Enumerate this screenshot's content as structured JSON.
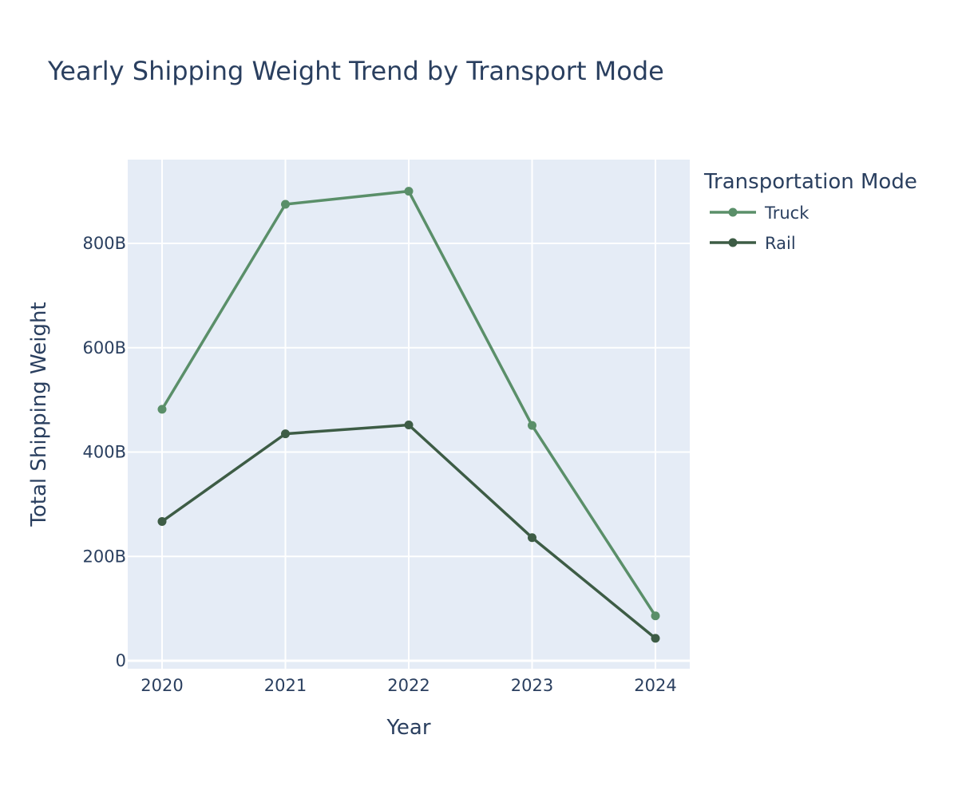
{
  "chart_data": {
    "type": "line",
    "title": "Yearly Shipping Weight Trend by Transport Mode",
    "xlabel": "Year",
    "ylabel": "Total Shipping Weight",
    "categories": [
      "2020",
      "2021",
      "2022",
      "2023",
      "2024"
    ],
    "yticks": [
      0,
      200,
      400,
      600,
      800
    ],
    "ytick_labels": [
      "0",
      "200B",
      "400B",
      "600B",
      "800B"
    ],
    "ylim": [
      -6,
      960
    ],
    "grid": true,
    "legend": {
      "title": "Transportation Mode",
      "placement": "top-right, outside plot"
    },
    "series": [
      {
        "name": "Truck",
        "color": "#5a8f69",
        "values": [
          482,
          875,
          900,
          451,
          86
        ]
      },
      {
        "name": "Rail",
        "color": "#3d5c45",
        "values": [
          267,
          435,
          452,
          236,
          43
        ]
      }
    ],
    "unit_note": "values in billions (B)"
  },
  "colors": {
    "plot_bg": "#e5ecf6",
    "grid": "#ffffff",
    "text": "#2a3f5f"
  }
}
